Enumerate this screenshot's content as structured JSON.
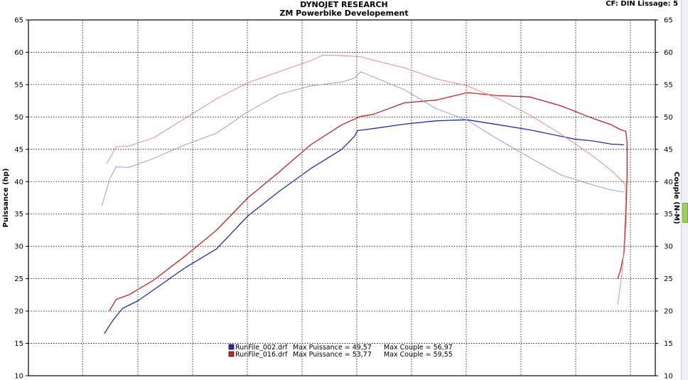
{
  "chart_data": {
    "type": "line",
    "title": "DYNOJET RESEARCH",
    "subtitle": "ZM Powerbike Developement",
    "corner_note": "CF: DIN  Lissage: 5",
    "ylabel_left": "Puissance (hp)",
    "ylabel_right": "Couple (N-M)",
    "ylim": [
      10,
      65
    ],
    "yticks": [
      10,
      15,
      20,
      25,
      30,
      35,
      40,
      45,
      50,
      55,
      60,
      65
    ],
    "x_range": [
      0,
      1
    ],
    "x_grid": [
      0,
      0.0864,
      0.1746,
      0.2619,
      0.3492,
      0.4365,
      0.5238,
      0.6111,
      0.6984,
      0.7857,
      0.873,
      0.9603,
      1
    ],
    "grid": true,
    "legend_position": "bottom-center",
    "legend": [
      {
        "file": "RunFile_002.drf",
        "max_power_label": "Max Puissance = 49,57",
        "max_torque_label": "Max Couple = 56,97",
        "color": "#1f2fb0"
      },
      {
        "file": "RunFile_016.drf",
        "max_power_label": "Max Puissance = 53,77",
        "max_torque_label": "Max Couple = 59,55",
        "color": "#cc2222"
      }
    ],
    "series": [
      {
        "run": 0,
        "kind": "power",
        "color": "#1f2fb0",
        "width": 1.3,
        "points": [
          [
            0.121,
            16.5
          ],
          [
            0.135,
            18.6
          ],
          [
            0.15,
            20.4
          ],
          [
            0.175,
            21.6
          ],
          [
            0.2,
            23.3
          ],
          [
            0.25,
            26.7
          ],
          [
            0.3,
            29.6
          ],
          [
            0.35,
            34.7
          ],
          [
            0.4,
            38.5
          ],
          [
            0.45,
            42.0
          ],
          [
            0.5,
            45.0
          ],
          [
            0.52,
            47.0
          ],
          [
            0.525,
            47.9
          ],
          [
            0.55,
            48.2
          ],
          [
            0.6,
            48.9
          ],
          [
            0.65,
            49.4
          ],
          [
            0.7,
            49.57
          ],
          [
            0.75,
            48.8
          ],
          [
            0.8,
            48.0
          ],
          [
            0.85,
            47.0
          ],
          [
            0.87,
            46.6
          ],
          [
            0.9,
            46.3
          ],
          [
            0.93,
            45.8
          ],
          [
            0.95,
            45.7
          ]
        ]
      },
      {
        "run": 1,
        "kind": "power",
        "color": "#c42222",
        "width": 1.3,
        "points": [
          [
            0.129,
            20.0
          ],
          [
            0.14,
            21.8
          ],
          [
            0.16,
            22.5
          ],
          [
            0.2,
            24.8
          ],
          [
            0.25,
            28.5
          ],
          [
            0.3,
            32.5
          ],
          [
            0.35,
            37.5
          ],
          [
            0.4,
            41.5
          ],
          [
            0.45,
            45.7
          ],
          [
            0.5,
            48.8
          ],
          [
            0.53,
            50.1
          ],
          [
            0.55,
            50.4
          ],
          [
            0.6,
            52.2
          ],
          [
            0.65,
            52.6
          ],
          [
            0.7,
            53.77
          ],
          [
            0.75,
            53.3
          ],
          [
            0.8,
            53.1
          ],
          [
            0.85,
            51.7
          ],
          [
            0.9,
            49.8
          ],
          [
            0.93,
            48.8
          ],
          [
            0.945,
            48.0
          ],
          [
            0.953,
            47.8
          ],
          [
            0.955,
            46.0
          ],
          [
            0.955,
            41.0
          ],
          [
            0.953,
            34.0
          ],
          [
            0.95,
            29.0
          ],
          [
            0.945,
            26.5
          ],
          [
            0.94,
            25.0
          ]
        ]
      },
      {
        "run": 0,
        "kind": "torque",
        "color": "#8b90e8",
        "width": 0.9,
        "points": [
          [
            0.117,
            36.2
          ],
          [
            0.13,
            40.5
          ],
          [
            0.14,
            42.3
          ],
          [
            0.16,
            42.2
          ],
          [
            0.2,
            43.6
          ],
          [
            0.25,
            45.7
          ],
          [
            0.3,
            47.5
          ],
          [
            0.35,
            50.8
          ],
          [
            0.4,
            53.5
          ],
          [
            0.45,
            54.8
          ],
          [
            0.5,
            55.4
          ],
          [
            0.52,
            56.0
          ],
          [
            0.53,
            56.97
          ],
          [
            0.55,
            56.2
          ],
          [
            0.6,
            54.2
          ],
          [
            0.65,
            51.3
          ],
          [
            0.7,
            49.5
          ],
          [
            0.75,
            46.5
          ],
          [
            0.8,
            43.7
          ],
          [
            0.85,
            41.0
          ],
          [
            0.9,
            39.5
          ],
          [
            0.93,
            38.7
          ],
          [
            0.95,
            38.4
          ]
        ]
      },
      {
        "run": 1,
        "kind": "torque",
        "color": "#ee7f7f",
        "width": 0.9,
        "points": [
          [
            0.125,
            42.8
          ],
          [
            0.14,
            45.4
          ],
          [
            0.16,
            45.5
          ],
          [
            0.2,
            46.8
          ],
          [
            0.25,
            49.8
          ],
          [
            0.3,
            52.8
          ],
          [
            0.35,
            55.3
          ],
          [
            0.4,
            57.0
          ],
          [
            0.45,
            58.7
          ],
          [
            0.47,
            59.55
          ],
          [
            0.5,
            59.5
          ],
          [
            0.53,
            59.3
          ],
          [
            0.55,
            58.8
          ],
          [
            0.6,
            57.6
          ],
          [
            0.65,
            55.9
          ],
          [
            0.7,
            54.8
          ],
          [
            0.75,
            52.8
          ],
          [
            0.8,
            50.3
          ],
          [
            0.85,
            47.3
          ],
          [
            0.9,
            44.0
          ],
          [
            0.93,
            41.7
          ],
          [
            0.945,
            40.3
          ],
          [
            0.952,
            39.6
          ],
          [
            0.953,
            37.0
          ],
          [
            0.95,
            30.0
          ],
          [
            0.947,
            26.0
          ],
          [
            0.943,
            23.0
          ],
          [
            0.94,
            21.0
          ]
        ]
      }
    ]
  }
}
